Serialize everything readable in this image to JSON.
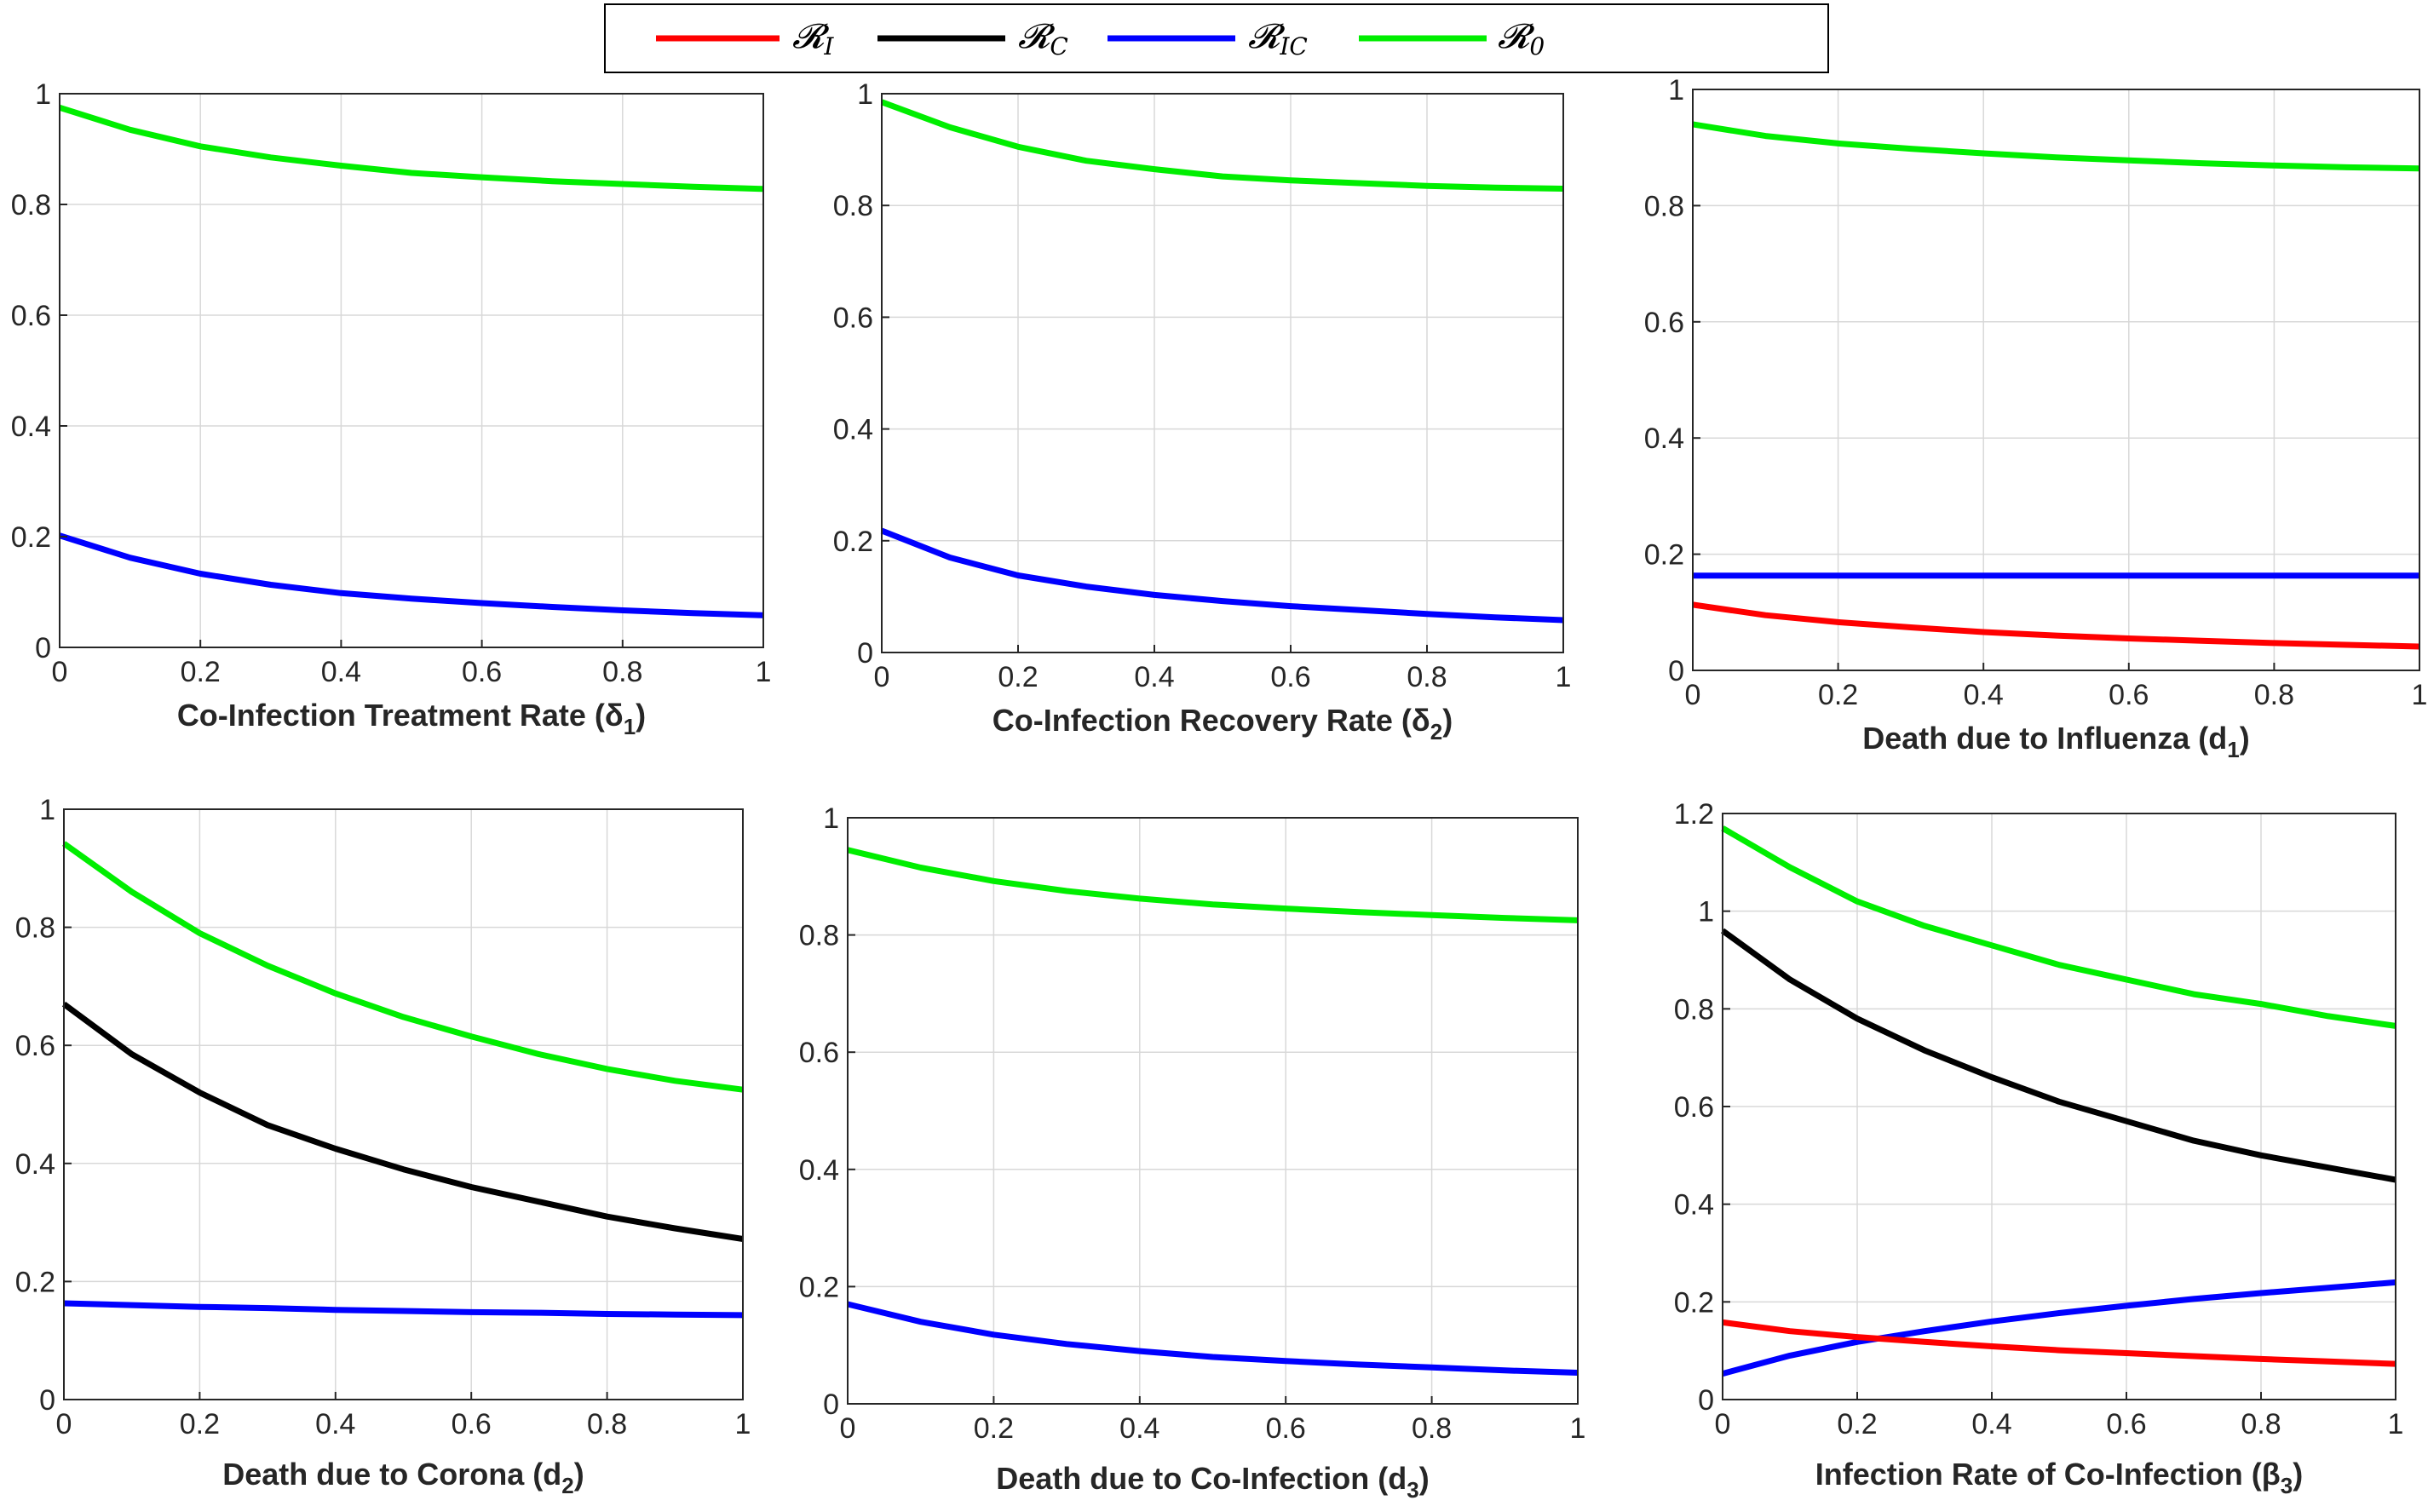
{
  "legend": {
    "entries": [
      {
        "key": "RI",
        "symbol": "𝓡",
        "sub": "I",
        "color": "#ff0000"
      },
      {
        "key": "RC",
        "symbol": "𝓡",
        "sub": "C",
        "color": "#000000"
      },
      {
        "key": "RIC",
        "symbol": "𝓡",
        "sub": "IC",
        "color": "#0000ff"
      },
      {
        "key": "R0",
        "symbol": "𝓡",
        "sub": "0",
        "color": "#00ee00"
      }
    ]
  },
  "chart_data": [
    {
      "type": "line",
      "xlabel": "Co-Infection Treatment Rate (δ",
      "xlabel_sub": "1",
      "xlabel_close": ")",
      "xlim": [
        0,
        1
      ],
      "ylim": [
        0,
        1
      ],
      "xticks": [
        "0",
        "0.2",
        "0.4",
        "0.6",
        "0.8",
        "1"
      ],
      "yticks": [
        "0",
        "0.2",
        "0.4",
        "0.6",
        "0.8",
        "1"
      ],
      "grid": true,
      "x": [
        0,
        0.1,
        0.2,
        0.3,
        0.4,
        0.5,
        0.6,
        0.7,
        0.8,
        0.9,
        1.0
      ],
      "series": [
        {
          "name": "R0",
          "values": [
            0.975,
            0.935,
            0.905,
            0.885,
            0.87,
            0.857,
            0.849,
            0.842,
            0.837,
            0.832,
            0.828
          ]
        },
        {
          "name": "RIC",
          "values": [
            0.202,
            0.162,
            0.133,
            0.113,
            0.098,
            0.088,
            0.08,
            0.073,
            0.067,
            0.062,
            0.058
          ]
        }
      ]
    },
    {
      "type": "line",
      "xlabel": "Co-Infection Recovery Rate (δ",
      "xlabel_sub": "2",
      "xlabel_close": ")",
      "xlim": [
        0,
        1
      ],
      "ylim": [
        0,
        1
      ],
      "xticks": [
        "0",
        "0.2",
        "0.4",
        "0.6",
        "0.8",
        "1"
      ],
      "yticks": [
        "0",
        "0.2",
        "0.4",
        "0.6",
        "0.8",
        "1"
      ],
      "grid": true,
      "x": [
        0,
        0.1,
        0.2,
        0.3,
        0.4,
        0.5,
        0.6,
        0.7,
        0.8,
        0.9,
        1.0
      ],
      "series": [
        {
          "name": "R0",
          "values": [
            0.985,
            0.94,
            0.905,
            0.88,
            0.865,
            0.852,
            0.845,
            0.84,
            0.835,
            0.832,
            0.83
          ]
        },
        {
          "name": "RIC",
          "values": [
            0.218,
            0.17,
            0.138,
            0.118,
            0.103,
            0.092,
            0.083,
            0.076,
            0.069,
            0.063,
            0.058
          ]
        }
      ]
    },
    {
      "type": "line",
      "xlabel": "Death due to Influenza (d",
      "xlabel_sub": "1",
      "xlabel_close": ")",
      "xlim": [
        0,
        1
      ],
      "ylim": [
        0,
        1
      ],
      "xticks": [
        "0",
        "0.2",
        "0.4",
        "0.6",
        "0.8",
        "1"
      ],
      "yticks": [
        "0",
        "0.2",
        "0.4",
        "0.6",
        "0.8",
        "1"
      ],
      "grid": true,
      "x": [
        0,
        0.1,
        0.2,
        0.3,
        0.4,
        0.5,
        0.6,
        0.7,
        0.8,
        0.9,
        1.0
      ],
      "series": [
        {
          "name": "R0",
          "values": [
            0.94,
            0.92,
            0.907,
            0.898,
            0.89,
            0.883,
            0.878,
            0.873,
            0.869,
            0.866,
            0.864
          ]
        },
        {
          "name": "RIC",
          "values": [
            0.163,
            0.163,
            0.163,
            0.163,
            0.163,
            0.163,
            0.163,
            0.163,
            0.163,
            0.163,
            0.163
          ]
        },
        {
          "name": "RI",
          "values": [
            0.113,
            0.095,
            0.083,
            0.074,
            0.066,
            0.06,
            0.055,
            0.051,
            0.047,
            0.044,
            0.041
          ]
        }
      ]
    },
    {
      "type": "line",
      "xlabel": "Death due to Corona (d",
      "xlabel_sub": "2",
      "xlabel_close": ")",
      "xlim": [
        0,
        1
      ],
      "ylim": [
        0,
        1
      ],
      "xticks": [
        "0",
        "0.2",
        "0.4",
        "0.6",
        "0.8",
        "1"
      ],
      "yticks": [
        "0",
        "0.2",
        "0.4",
        "0.6",
        "0.8",
        "1"
      ],
      "grid": true,
      "x": [
        0,
        0.1,
        0.2,
        0.3,
        0.4,
        0.5,
        0.6,
        0.7,
        0.8,
        0.9,
        1.0
      ],
      "series": [
        {
          "name": "R0",
          "values": [
            0.942,
            0.86,
            0.79,
            0.735,
            0.688,
            0.648,
            0.615,
            0.585,
            0.56,
            0.54,
            0.525
          ]
        },
        {
          "name": "RC",
          "values": [
            0.67,
            0.585,
            0.52,
            0.465,
            0.425,
            0.39,
            0.36,
            0.335,
            0.31,
            0.29,
            0.272
          ]
        },
        {
          "name": "RIC",
          "values": [
            0.163,
            0.16,
            0.157,
            0.155,
            0.152,
            0.15,
            0.148,
            0.147,
            0.145,
            0.144,
            0.143
          ]
        }
      ]
    },
    {
      "type": "line",
      "xlabel": "Death due to Co-Infection (d",
      "xlabel_sub": "3",
      "xlabel_close": ")",
      "xlim": [
        0,
        1
      ],
      "ylim": [
        0,
        1
      ],
      "xticks": [
        "0",
        "0.2",
        "0.4",
        "0.6",
        "0.8",
        "1"
      ],
      "yticks": [
        "0",
        "0.2",
        "0.4",
        "0.6",
        "0.8",
        "1"
      ],
      "grid": true,
      "x": [
        0,
        0.1,
        0.2,
        0.3,
        0.4,
        0.5,
        0.6,
        0.7,
        0.8,
        0.9,
        1.0
      ],
      "series": [
        {
          "name": "R0",
          "values": [
            0.945,
            0.915,
            0.892,
            0.875,
            0.862,
            0.852,
            0.845,
            0.839,
            0.834,
            0.829,
            0.825
          ]
        },
        {
          "name": "RIC",
          "values": [
            0.17,
            0.14,
            0.118,
            0.102,
            0.09,
            0.08,
            0.073,
            0.067,
            0.062,
            0.057,
            0.053
          ]
        }
      ]
    },
    {
      "type": "line",
      "xlabel": "Infection Rate of Co-Infection (β",
      "xlabel_sub": "3",
      "xlabel_close": ")",
      "xlim": [
        0,
        1
      ],
      "ylim": [
        0,
        1.2
      ],
      "xticks": [
        "0",
        "0.2",
        "0.4",
        "0.6",
        "0.8",
        "1"
      ],
      "yticks": [
        "0",
        "0.2",
        "0.4",
        "0.6",
        "0.8",
        "1",
        "1.2"
      ],
      "grid": true,
      "x": [
        0,
        0.1,
        0.2,
        0.3,
        0.4,
        0.5,
        0.6,
        0.7,
        0.8,
        0.9,
        1.0
      ],
      "series": [
        {
          "name": "R0",
          "values": [
            1.17,
            1.09,
            1.02,
            0.97,
            0.93,
            0.89,
            0.86,
            0.83,
            0.81,
            0.785,
            0.765
          ]
        },
        {
          "name": "RC",
          "values": [
            0.96,
            0.86,
            0.78,
            0.715,
            0.66,
            0.61,
            0.57,
            0.53,
            0.5,
            0.475,
            0.45
          ]
        },
        {
          "name": "RIC",
          "values": [
            0.053,
            0.09,
            0.118,
            0.14,
            0.16,
            0.177,
            0.192,
            0.206,
            0.218,
            0.229,
            0.24
          ]
        },
        {
          "name": "RI",
          "values": [
            0.158,
            0.14,
            0.128,
            0.118,
            0.109,
            0.101,
            0.095,
            0.089,
            0.083,
            0.078,
            0.073
          ]
        }
      ]
    }
  ]
}
